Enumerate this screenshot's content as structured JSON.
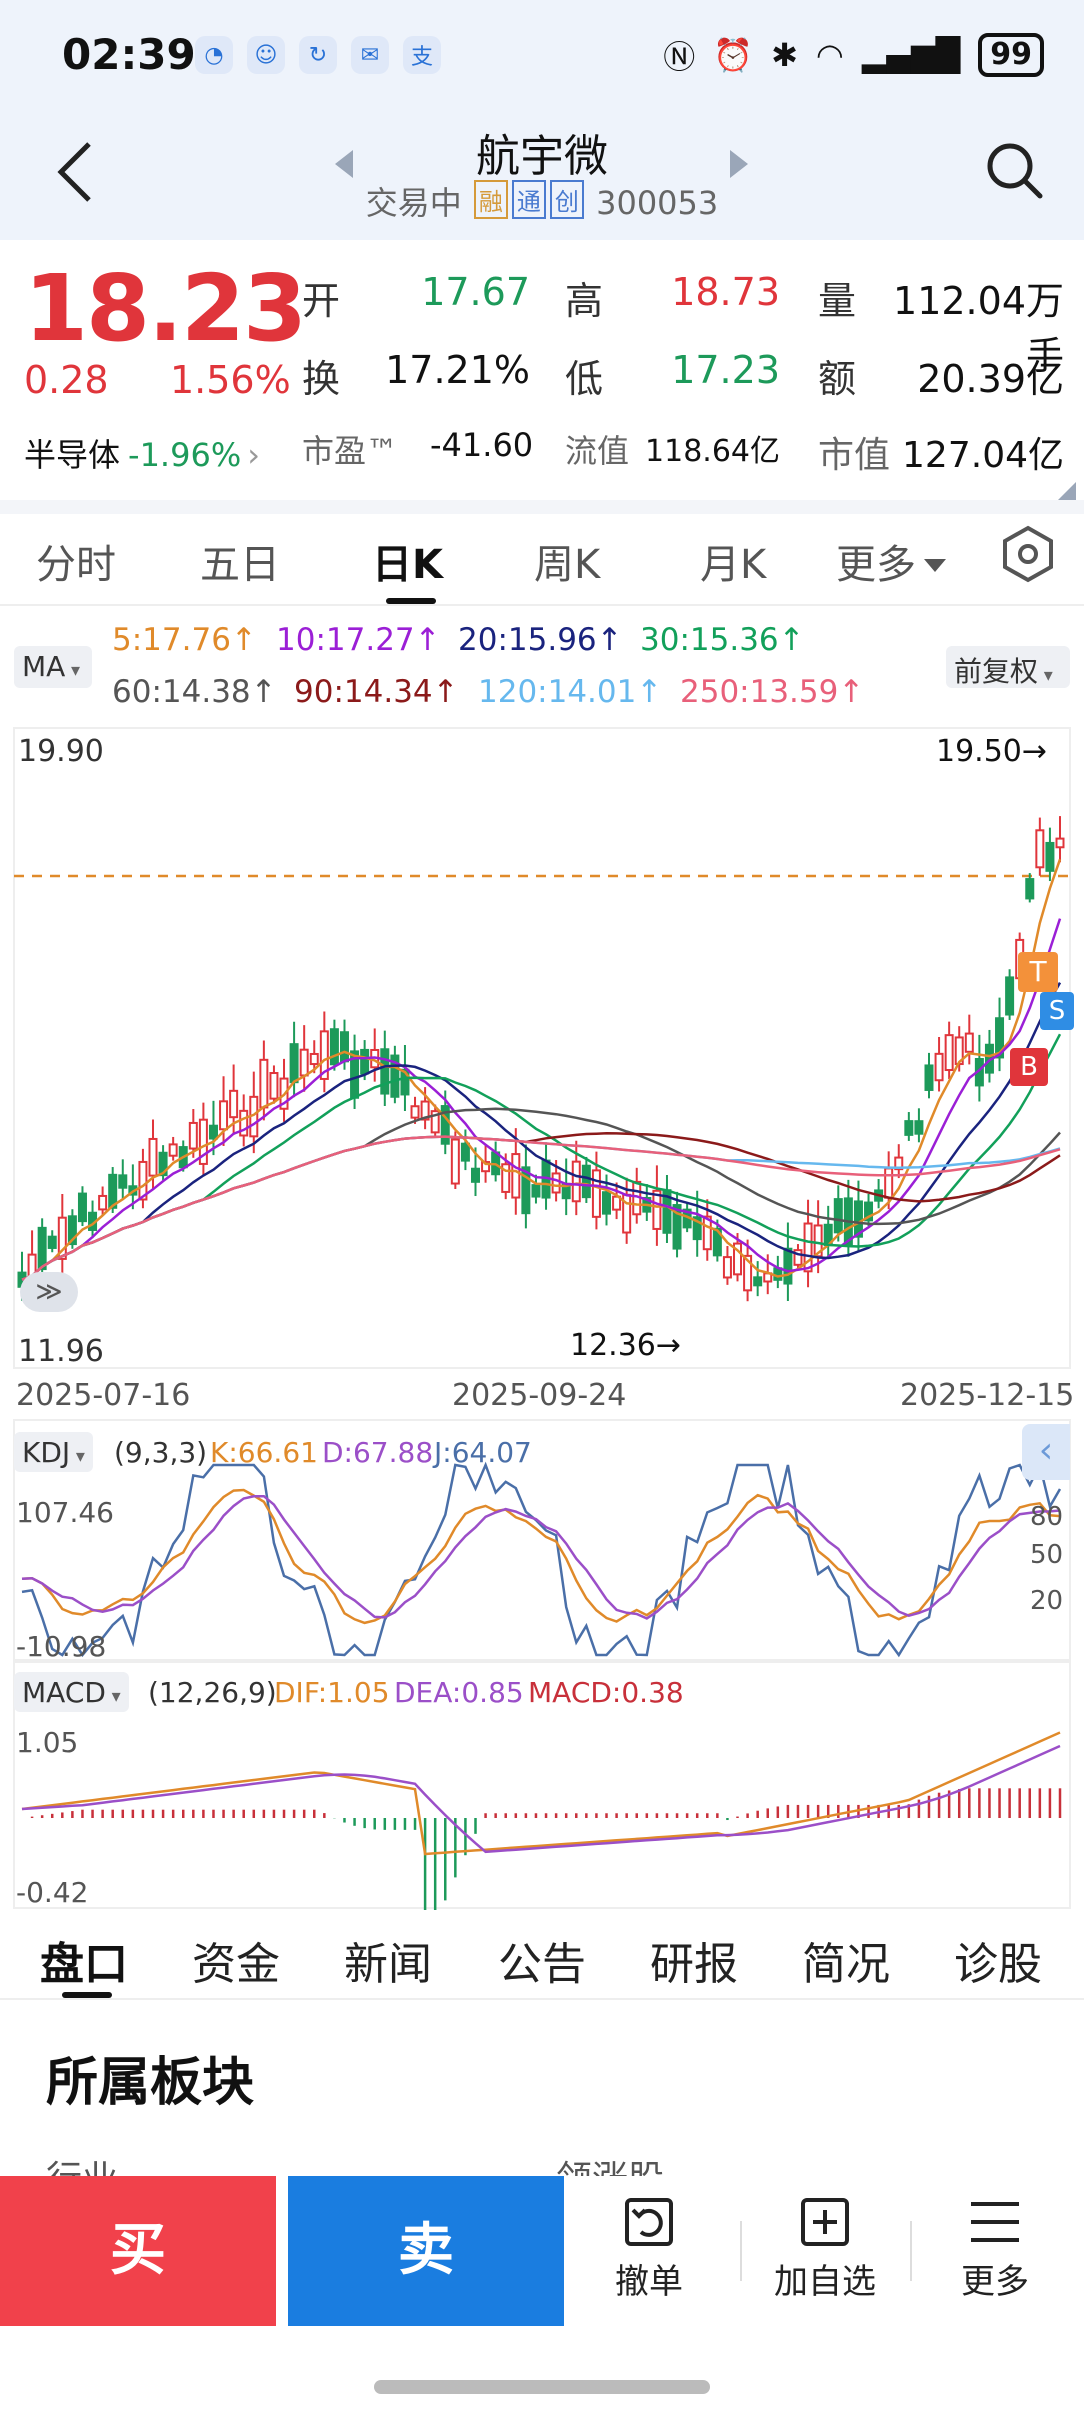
{
  "status_bar": {
    "time": "02:39",
    "battery": "99",
    "app_icons": [
      "browser-icon",
      "qq-icon",
      "sync-icon",
      "message-icon",
      "alipay-icon"
    ]
  },
  "header": {
    "title": "航宇微",
    "status": "交易中",
    "tags": [
      "融",
      "通",
      "创"
    ],
    "code": "300053"
  },
  "quote": {
    "price": "18.23",
    "change": "0.28",
    "change_pct": "1.56%",
    "open_label": "开",
    "open": "17.67",
    "high_label": "高",
    "high": "18.73",
    "volume_label": "量",
    "volume": "112.04万手",
    "turnover_label": "换",
    "turnover": "17.21%",
    "low_label": "低",
    "low": "17.23",
    "amount_label": "额",
    "amount": "20.39亿",
    "sector_name": "半导体",
    "sector_pct": "-1.96%",
    "pe_label": "市盈™",
    "pe": "-41.60",
    "float_cap_label": "流值",
    "float_cap": "118.64亿",
    "mkt_cap_label": "市值",
    "mkt_cap": "127.04亿"
  },
  "period_tabs": [
    "分时",
    "五日",
    "日K",
    "周K",
    "月K",
    "更多"
  ],
  "active_period": "日K",
  "ma_legend": {
    "selector": "MA",
    "adjust": "前复权",
    "items": [
      {
        "text": "5:17.76↑",
        "color": "#e08a2a"
      },
      {
        "text": "10:17.27↑",
        "color": "#9b1fd6"
      },
      {
        "text": "20:15.96↑",
        "color": "#1a237e"
      },
      {
        "text": "30:15.36↑",
        "color": "#12a05a"
      },
      {
        "text": "60:14.38↑",
        "color": "#555555"
      },
      {
        "text": "90:14.34↑",
        "color": "#8b1a1a"
      },
      {
        "text": "120:14.01↑",
        "color": "#66b8ee"
      },
      {
        "text": "250:13.59↑",
        "color": "#e8607a"
      }
    ]
  },
  "kline": {
    "y_max_label": "19.90",
    "y_min_label": "11.96",
    "high_mark": "19.50→",
    "low_mark": "12.36→",
    "dates": [
      "2025-07-16",
      "2025-09-24",
      "2025-12-15"
    ],
    "markers": [
      "T",
      "S",
      "B"
    ]
  },
  "kdj": {
    "selector": "KDJ",
    "params": "(9,3,3)",
    "k": "K:66.61",
    "d": "D:67.88",
    "j": "J:64.07",
    "top": "107.46",
    "bottom": "-10.98",
    "levels": [
      "80",
      "50",
      "20"
    ]
  },
  "macd": {
    "selector": "MACD",
    "params": "(12,26,9)",
    "dif": "DIF:1.05",
    "dea": "DEA:0.85",
    "macd": "MACD:0.38",
    "top": "1.05",
    "bottom": "-0.42"
  },
  "bottom_tabs": [
    "盘口",
    "资金",
    "新闻",
    "公告",
    "研报",
    "简况",
    "诊股"
  ],
  "section": {
    "title": "所属板块",
    "left_cut": "行业",
    "right_cut": "领涨股"
  },
  "actions": {
    "buy": "买",
    "sell": "卖",
    "cancel": "撤单",
    "watch": "加自选",
    "more": "更多"
  }
}
